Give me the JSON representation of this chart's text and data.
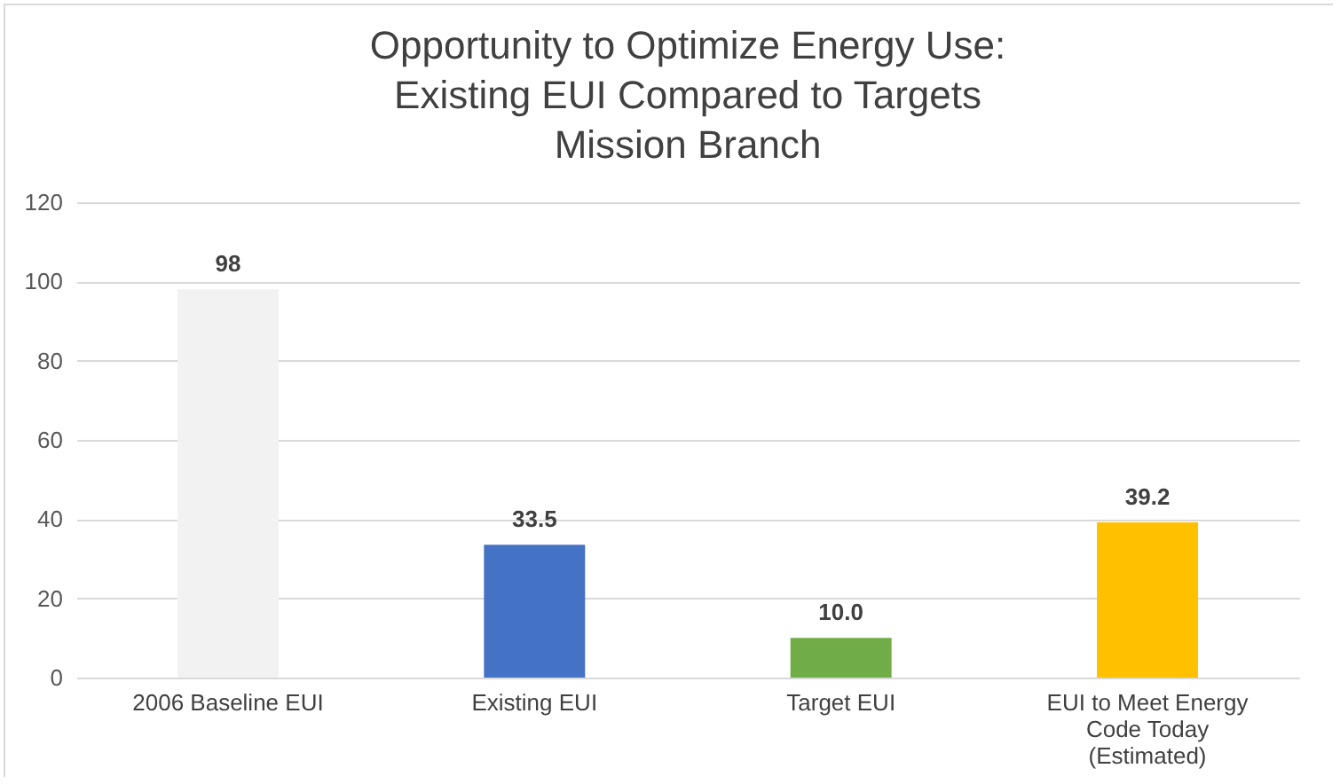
{
  "chart_data": {
    "type": "bar",
    "title": "Opportunity to Optimize Energy Use:\nExisting EUI Compared to Targets\nMission Branch",
    "categories": [
      "2006 Baseline EUI",
      "Existing EUI",
      "Target EUI",
      "EUI to Meet Energy Code Today (Estimated)"
    ],
    "values": [
      98,
      33.5,
      10.0,
      39.2
    ],
    "colors": [
      "#f2f2f2",
      "#4472c4",
      "#70ad47",
      "#ffc000"
    ],
    "value_labels": [
      "98",
      "33.5",
      "10.0",
      "39.2"
    ],
    "ylim": [
      0,
      120
    ],
    "yticks": [
      0,
      20,
      40,
      60,
      80,
      100,
      120
    ],
    "grid": "y"
  }
}
